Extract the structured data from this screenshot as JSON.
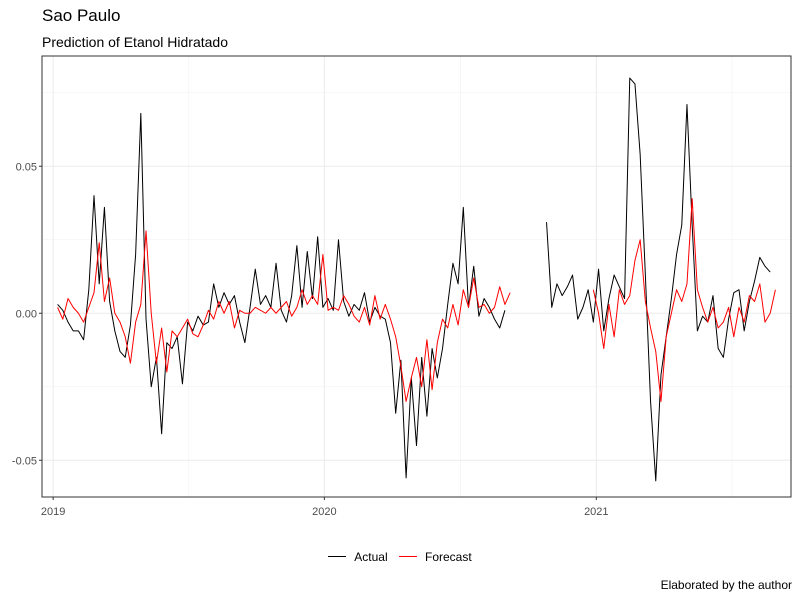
{
  "chart_data": {
    "type": "line",
    "title": "Sao Paulo",
    "subtitle": "Prediction of Etanol Hidratado",
    "caption": "Elaborated by the author",
    "x_range": [
      "2018-12-17",
      "2021-09-20"
    ],
    "y_range": [
      -0.0625,
      0.0875
    ],
    "x_ticks": [
      "2019-01-01",
      "2020-01-01",
      "2021-01-01"
    ],
    "x_tick_labels": [
      "2019",
      "2020",
      "2021"
    ],
    "y_ticks": [
      -0.05,
      0,
      0.05
    ],
    "y_tick_labels": [
      "-0.05",
      "0.00",
      "0.05"
    ],
    "grid": true,
    "legend_position": "bottom",
    "series": [
      {
        "name": "Actual",
        "color": "#000000",
        "points": [
          [
            "2019-01-07",
            0.003
          ],
          [
            "2019-01-14",
            0.001
          ],
          [
            "2019-01-21",
            -0.003
          ],
          [
            "2019-01-28",
            -0.006
          ],
          [
            "2019-02-04",
            -0.006
          ],
          [
            "2019-02-11",
            -0.009
          ],
          [
            "2019-02-18",
            0.008
          ],
          [
            "2019-02-25",
            0.04
          ],
          [
            "2019-03-04",
            0.01
          ],
          [
            "2019-03-11",
            0.036
          ],
          [
            "2019-03-18",
            0.004
          ],
          [
            "2019-03-25",
            -0.006
          ],
          [
            "2019-04-01",
            -0.013
          ],
          [
            "2019-04-08",
            -0.015
          ],
          [
            "2019-04-15",
            -0.004
          ],
          [
            "2019-04-22",
            0.02
          ],
          [
            "2019-04-29",
            0.068
          ],
          [
            "2019-05-06",
            -0.002
          ],
          [
            "2019-05-13",
            -0.025
          ],
          [
            "2019-05-20",
            -0.015
          ],
          [
            "2019-05-27",
            -0.041
          ],
          [
            "2019-06-03",
            -0.01
          ],
          [
            "2019-06-10",
            -0.012
          ],
          [
            "2019-06-17",
            -0.008
          ],
          [
            "2019-06-24",
            -0.024
          ],
          [
            "2019-07-01",
            -0.003
          ],
          [
            "2019-07-08",
            -0.006
          ],
          [
            "2019-07-15",
            -0.001
          ],
          [
            "2019-07-22",
            -0.004
          ],
          [
            "2019-07-29",
            -0.003
          ],
          [
            "2019-08-05",
            0.01
          ],
          [
            "2019-08-12",
            0.002
          ],
          [
            "2019-08-19",
            0.007
          ],
          [
            "2019-08-26",
            0.003
          ],
          [
            "2019-09-02",
            0.006
          ],
          [
            "2019-09-09",
            -0.003
          ],
          [
            "2019-09-16",
            -0.01
          ],
          [
            "2019-09-23",
            0.002
          ],
          [
            "2019-09-30",
            0.015
          ],
          [
            "2019-10-07",
            0.003
          ],
          [
            "2019-10-14",
            0.006
          ],
          [
            "2019-10-21",
            0.002
          ],
          [
            "2019-10-28",
            0.017
          ],
          [
            "2019-11-04",
            0.001
          ],
          [
            "2019-11-11",
            -0.003
          ],
          [
            "2019-11-18",
            0.006
          ],
          [
            "2019-11-25",
            0.023
          ],
          [
            "2019-12-02",
            0.002
          ],
          [
            "2019-12-09",
            0.021
          ],
          [
            "2019-12-16",
            0.005
          ],
          [
            "2019-12-23",
            0.026
          ],
          [
            "2019-12-30",
            0.002
          ],
          [
            "2020-01-06",
            0.005
          ],
          [
            "2020-01-13",
            0.001
          ],
          [
            "2020-01-20",
            0.025
          ],
          [
            "2020-01-27",
            0.004
          ],
          [
            "2020-02-03",
            -0.001
          ],
          [
            "2020-02-10",
            0.003
          ],
          [
            "2020-02-17",
            0.001
          ],
          [
            "2020-02-24",
            0.007
          ],
          [
            "2020-03-02",
            -0.003
          ],
          [
            "2020-03-09",
            0.002
          ],
          [
            "2020-03-16",
            -0.001
          ],
          [
            "2020-03-23",
            -0.002
          ],
          [
            "2020-03-30",
            -0.01
          ],
          [
            "2020-04-06",
            -0.034
          ],
          [
            "2020-04-13",
            -0.016
          ],
          [
            "2020-04-20",
            -0.056
          ],
          [
            "2020-04-27",
            -0.022
          ],
          [
            "2020-05-04",
            -0.045
          ],
          [
            "2020-05-11",
            -0.015
          ],
          [
            "2020-05-18",
            -0.035
          ],
          [
            "2020-05-25",
            -0.012
          ],
          [
            "2020-06-01",
            -0.022
          ],
          [
            "2020-06-08",
            -0.012
          ],
          [
            "2020-06-15",
            0.003
          ],
          [
            "2020-06-22",
            0.017
          ],
          [
            "2020-06-29",
            0.01
          ],
          [
            "2020-07-06",
            0.036
          ],
          [
            "2020-07-13",
            0.002
          ],
          [
            "2020-07-20",
            0.016
          ],
          [
            "2020-07-27",
            -0.001
          ],
          [
            "2020-08-03",
            0.005
          ],
          [
            "2020-08-10",
            0.002
          ],
          [
            "2020-08-17",
            -0.002
          ],
          [
            "2020-08-24",
            -0.005
          ],
          [
            "2020-08-31",
            0.001
          ],
          null,
          [
            "2020-10-26",
            0.031
          ],
          [
            "2020-11-02",
            0.002
          ],
          [
            "2020-11-09",
            0.01
          ],
          [
            "2020-11-16",
            0.006
          ],
          [
            "2020-11-23",
            0.009
          ],
          [
            "2020-11-30",
            0.013
          ],
          [
            "2020-12-07",
            -0.002
          ],
          [
            "2020-12-14",
            0.002
          ],
          [
            "2020-12-21",
            0.008
          ],
          [
            "2020-12-28",
            -0.003
          ],
          [
            "2021-01-04",
            0.015
          ],
          [
            "2021-01-11",
            -0.006
          ],
          [
            "2021-01-18",
            0.005
          ],
          [
            "2021-01-25",
            0.013
          ],
          [
            "2021-02-01",
            0.009
          ],
          [
            "2021-02-08",
            0.005
          ],
          [
            "2021-02-15",
            0.08
          ],
          [
            "2021-02-22",
            0.078
          ],
          [
            "2021-03-01",
            0.054
          ],
          [
            "2021-03-08",
            0.013
          ],
          [
            "2021-03-15",
            -0.03
          ],
          [
            "2021-03-22",
            -0.057
          ],
          [
            "2021-03-29",
            -0.021
          ],
          [
            "2021-04-05",
            -0.008
          ],
          [
            "2021-04-12",
            0.005
          ],
          [
            "2021-04-19",
            0.02
          ],
          [
            "2021-04-26",
            0.03
          ],
          [
            "2021-05-03",
            0.071
          ],
          [
            "2021-05-10",
            0.03
          ],
          [
            "2021-05-17",
            -0.006
          ],
          [
            "2021-05-24",
            -0.001
          ],
          [
            "2021-05-31",
            -0.003
          ],
          [
            "2021-06-07",
            0.006
          ],
          [
            "2021-06-14",
            -0.012
          ],
          [
            "2021-06-21",
            -0.015
          ],
          [
            "2021-06-28",
            -0.002
          ],
          [
            "2021-07-05",
            0.007
          ],
          [
            "2021-07-12",
            0.008
          ],
          [
            "2021-07-19",
            -0.006
          ],
          [
            "2021-07-26",
            0.004
          ],
          [
            "2021-08-02",
            0.011
          ],
          [
            "2021-08-09",
            0.019
          ],
          [
            "2021-08-16",
            0.016
          ],
          [
            "2021-08-23",
            0.014
          ]
        ]
      },
      {
        "name": "Forecast",
        "color": "#ff0000",
        "points": [
          [
            "2019-01-07",
            0.002
          ],
          [
            "2019-01-14",
            -0.002
          ],
          [
            "2019-01-21",
            0.005
          ],
          [
            "2019-01-28",
            0.002
          ],
          [
            "2019-02-04",
            0.0
          ],
          [
            "2019-02-11",
            -0.003
          ],
          [
            "2019-02-18",
            0.002
          ],
          [
            "2019-02-25",
            0.007
          ],
          [
            "2019-03-04",
            0.024
          ],
          [
            "2019-03-11",
            0.004
          ],
          [
            "2019-03-18",
            0.012
          ],
          [
            "2019-03-25",
            0.0
          ],
          [
            "2019-04-01",
            -0.003
          ],
          [
            "2019-04-08",
            -0.008
          ],
          [
            "2019-04-15",
            -0.017
          ],
          [
            "2019-04-22",
            -0.003
          ],
          [
            "2019-04-29",
            0.003
          ],
          [
            "2019-05-06",
            0.028
          ],
          [
            "2019-05-13",
            0.0
          ],
          [
            "2019-05-20",
            -0.017
          ],
          [
            "2019-05-27",
            -0.005
          ],
          [
            "2019-06-03",
            -0.02
          ],
          [
            "2019-06-10",
            -0.006
          ],
          [
            "2019-06-17",
            -0.008
          ],
          [
            "2019-06-24",
            -0.005
          ],
          [
            "2019-07-01",
            -0.002
          ],
          [
            "2019-07-08",
            -0.007
          ],
          [
            "2019-07-15",
            -0.008
          ],
          [
            "2019-07-22",
            -0.004
          ],
          [
            "2019-07-29",
            0.001
          ],
          [
            "2019-08-05",
            -0.002
          ],
          [
            "2019-08-12",
            0.004
          ],
          [
            "2019-08-19",
            0.0
          ],
          [
            "2019-08-26",
            0.004
          ],
          [
            "2019-09-02",
            -0.005
          ],
          [
            "2019-09-09",
            0.001
          ],
          [
            "2019-09-16",
            0.0
          ],
          [
            "2019-09-23",
            0.0
          ],
          [
            "2019-09-30",
            0.002
          ],
          [
            "2019-10-07",
            0.001
          ],
          [
            "2019-10-14",
            0.0
          ],
          [
            "2019-10-21",
            0.002
          ],
          [
            "2019-10-28",
            0.0
          ],
          [
            "2019-11-04",
            0.002
          ],
          [
            "2019-11-11",
            0.004
          ],
          [
            "2019-11-18",
            -0.001
          ],
          [
            "2019-11-25",
            0.002
          ],
          [
            "2019-12-02",
            0.008
          ],
          [
            "2019-12-09",
            0.003
          ],
          [
            "2019-12-16",
            0.006
          ],
          [
            "2019-12-23",
            0.003
          ],
          [
            "2019-12-30",
            0.02
          ],
          [
            "2020-01-06",
            0.001
          ],
          [
            "2020-01-13",
            0.002
          ],
          [
            "2020-01-20",
            0.001
          ],
          [
            "2020-01-27",
            0.006
          ],
          [
            "2020-02-03",
            0.003
          ],
          [
            "2020-02-10",
            -0.001
          ],
          [
            "2020-02-17",
            -0.003
          ],
          [
            "2020-02-24",
            0.002
          ],
          [
            "2020-03-02",
            -0.004
          ],
          [
            "2020-03-09",
            0.006
          ],
          [
            "2020-03-16",
            -0.002
          ],
          [
            "2020-03-23",
            0.003
          ],
          [
            "2020-03-30",
            -0.002
          ],
          [
            "2020-04-06",
            -0.008
          ],
          [
            "2020-04-13",
            -0.018
          ],
          [
            "2020-04-20",
            -0.03
          ],
          [
            "2020-04-27",
            -0.022
          ],
          [
            "2020-05-04",
            -0.015
          ],
          [
            "2020-05-11",
            -0.025
          ],
          [
            "2020-05-18",
            -0.009
          ],
          [
            "2020-05-25",
            -0.026
          ],
          [
            "2020-06-01",
            -0.01
          ],
          [
            "2020-06-08",
            -0.002
          ],
          [
            "2020-06-15",
            -0.005
          ],
          [
            "2020-06-22",
            0.003
          ],
          [
            "2020-06-29",
            -0.004
          ],
          [
            "2020-07-06",
            0.008
          ],
          [
            "2020-07-13",
            0.002
          ],
          [
            "2020-07-20",
            0.012
          ],
          [
            "2020-07-27",
            0.002
          ],
          [
            "2020-08-03",
            0.003
          ],
          [
            "2020-08-10",
            0.0
          ],
          [
            "2020-08-17",
            0.002
          ],
          [
            "2020-08-24",
            0.009
          ],
          [
            "2020-08-31",
            0.003
          ],
          [
            "2020-09-07",
            0.007
          ],
          null,
          [
            "2020-12-28",
            0.008
          ],
          [
            "2021-01-04",
            0.0
          ],
          [
            "2021-01-11",
            -0.012
          ],
          [
            "2021-01-18",
            0.003
          ],
          [
            "2021-01-25",
            -0.008
          ],
          [
            "2021-02-01",
            0.008
          ],
          [
            "2021-02-08",
            0.003
          ],
          [
            "2021-02-15",
            0.006
          ],
          [
            "2021-02-22",
            0.018
          ],
          [
            "2021-03-01",
            0.025
          ],
          [
            "2021-03-08",
            0.004
          ],
          [
            "2021-03-15",
            -0.005
          ],
          [
            "2021-03-22",
            -0.013
          ],
          [
            "2021-03-29",
            -0.03
          ],
          [
            "2021-04-05",
            -0.008
          ],
          [
            "2021-04-12",
            0.0
          ],
          [
            "2021-04-19",
            0.008
          ],
          [
            "2021-04-26",
            0.004
          ],
          [
            "2021-05-03",
            0.01
          ],
          [
            "2021-05-10",
            0.039
          ],
          [
            "2021-05-17",
            0.008
          ],
          [
            "2021-05-24",
            0.002
          ],
          [
            "2021-05-31",
            -0.003
          ],
          [
            "2021-06-07",
            0.002
          ],
          [
            "2021-06-14",
            -0.005
          ],
          [
            "2021-06-21",
            -0.003
          ],
          [
            "2021-06-28",
            0.002
          ],
          [
            "2021-07-05",
            -0.008
          ],
          [
            "2021-07-12",
            0.002
          ],
          [
            "2021-07-19",
            -0.003
          ],
          [
            "2021-07-26",
            0.006
          ],
          [
            "2021-08-02",
            0.004
          ],
          [
            "2021-08-09",
            0.01
          ],
          [
            "2021-08-16",
            -0.003
          ],
          [
            "2021-08-23",
            0.0
          ],
          [
            "2021-08-30",
            0.008
          ]
        ]
      }
    ]
  }
}
